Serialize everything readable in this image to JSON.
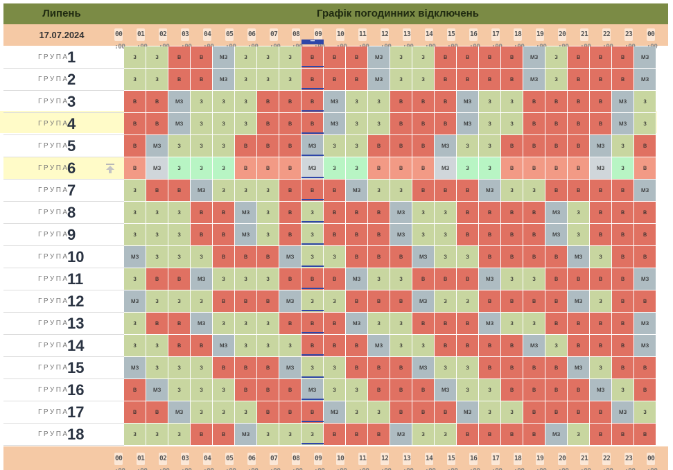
{
  "header": {
    "month": "Липень",
    "title": "Графік погодинних відключень"
  },
  "date": "17.07.2024",
  "hours": [
    "00",
    "01",
    "02",
    "03",
    "04",
    "05",
    "06",
    "07",
    "08",
    "09",
    "10",
    "11",
    "12",
    "13",
    "14",
    "15",
    "16",
    "17",
    "18",
    "19",
    "20",
    "21",
    "22",
    "23",
    "00"
  ],
  "minutes": ":00",
  "group_word": "ГРУПА",
  "highlighted_group": 6,
  "current_hour_indicator": "•••",
  "legend_codes": {
    "з": "з",
    "в": "в",
    "мз": "мз"
  },
  "colors": {
    "z": "#c8d6a0",
    "v": "#e07162",
    "m": "#aebcc2",
    "accent": "#2e46a8",
    "header": "#7b8b45",
    "datebar": "#f5c9a5"
  },
  "groups": [
    {
      "n": "1",
      "cells": [
        "з",
        "з",
        "в",
        "в",
        "мз",
        "з",
        "з",
        "з",
        "в",
        "в",
        "в",
        "мз",
        "з",
        "з",
        "в",
        "в",
        "в",
        "в",
        "мз",
        "з",
        "в",
        "в",
        "в",
        "мз"
      ]
    },
    {
      "n": "2",
      "cells": [
        "з",
        "з",
        "в",
        "в",
        "мз",
        "з",
        "з",
        "з",
        "в",
        "в",
        "в",
        "мз",
        "з",
        "з",
        "в",
        "в",
        "в",
        "в",
        "мз",
        "з",
        "в",
        "в",
        "в",
        "мз"
      ]
    },
    {
      "n": "3",
      "cells": [
        "в",
        "в",
        "мз",
        "з",
        "з",
        "з",
        "в",
        "в",
        "в",
        "мз",
        "з",
        "з",
        "в",
        "в",
        "в",
        "мз",
        "з",
        "з",
        "в",
        "в",
        "в",
        "в",
        "мз",
        "з"
      ]
    },
    {
      "n": "4",
      "cells": [
        "в",
        "в",
        "мз",
        "з",
        "з",
        "з",
        "в",
        "в",
        "в",
        "мз",
        "з",
        "з",
        "в",
        "в",
        "в",
        "мз",
        "з",
        "з",
        "в",
        "в",
        "в",
        "в",
        "мз",
        "з"
      ]
    },
    {
      "n": "5",
      "cells": [
        "в",
        "мз",
        "з",
        "з",
        "з",
        "в",
        "в",
        "в",
        "мз",
        "з",
        "з",
        "в",
        "в",
        "в",
        "мз",
        "з",
        "з",
        "в",
        "в",
        "в",
        "в",
        "мз",
        "з",
        "в"
      ]
    },
    {
      "n": "6",
      "cells": [
        "в",
        "мз",
        "з",
        "з",
        "з",
        "в",
        "в",
        "в",
        "мз",
        "з",
        "з",
        "в",
        "в",
        "в",
        "мз",
        "з",
        "з",
        "в",
        "в",
        "в",
        "в",
        "мз",
        "з",
        "в"
      ]
    },
    {
      "n": "7",
      "cells": [
        "з",
        "в",
        "в",
        "мз",
        "з",
        "з",
        "з",
        "в",
        "в",
        "в",
        "мз",
        "з",
        "з",
        "в",
        "в",
        "в",
        "мз",
        "з",
        "з",
        "в",
        "в",
        "в",
        "в",
        "мз"
      ]
    },
    {
      "n": "8",
      "cells": [
        "з",
        "з",
        "з",
        "в",
        "в",
        "мз",
        "з",
        "в",
        "з",
        "в",
        "в",
        "в",
        "мз",
        "з",
        "з",
        "в",
        "в",
        "в",
        "в",
        "мз",
        "з",
        "в",
        "в",
        "в"
      ]
    },
    {
      "n": "9",
      "cells": [
        "з",
        "з",
        "з",
        "в",
        "в",
        "мз",
        "з",
        "в",
        "з",
        "в",
        "в",
        "в",
        "мз",
        "з",
        "з",
        "в",
        "в",
        "в",
        "в",
        "мз",
        "з",
        "в",
        "в",
        "в"
      ]
    },
    {
      "n": "10",
      "cells": [
        "мз",
        "з",
        "з",
        "з",
        "в",
        "в",
        "в",
        "мз",
        "з",
        "з",
        "в",
        "в",
        "в",
        "мз",
        "з",
        "з",
        "в",
        "в",
        "в",
        "в",
        "мз",
        "з",
        "в",
        "в"
      ]
    },
    {
      "n": "11",
      "cells": [
        "з",
        "в",
        "в",
        "мз",
        "з",
        "з",
        "з",
        "в",
        "в",
        "в",
        "мз",
        "з",
        "з",
        "в",
        "в",
        "в",
        "мз",
        "з",
        "з",
        "в",
        "в",
        "в",
        "в",
        "мз"
      ]
    },
    {
      "n": "12",
      "cells": [
        "мз",
        "з",
        "з",
        "з",
        "в",
        "в",
        "в",
        "мз",
        "з",
        "з",
        "в",
        "в",
        "в",
        "мз",
        "з",
        "з",
        "в",
        "в",
        "в",
        "в",
        "мз",
        "з",
        "в",
        "в"
      ]
    },
    {
      "n": "13",
      "cells": [
        "з",
        "в",
        "в",
        "мз",
        "з",
        "з",
        "з",
        "в",
        "в",
        "в",
        "мз",
        "з",
        "з",
        "в",
        "в",
        "в",
        "мз",
        "з",
        "з",
        "в",
        "в",
        "в",
        "в",
        "мз"
      ]
    },
    {
      "n": "14",
      "cells": [
        "з",
        "з",
        "в",
        "в",
        "мз",
        "з",
        "з",
        "з",
        "в",
        "в",
        "в",
        "мз",
        "з",
        "з",
        "в",
        "в",
        "в",
        "в",
        "мз",
        "з",
        "в",
        "в",
        "в",
        "мз"
      ]
    },
    {
      "n": "15",
      "cells": [
        "мз",
        "з",
        "з",
        "з",
        "в",
        "в",
        "в",
        "мз",
        "з",
        "з",
        "в",
        "в",
        "в",
        "мз",
        "з",
        "з",
        "в",
        "в",
        "в",
        "в",
        "мз",
        "з",
        "в",
        "в"
      ]
    },
    {
      "n": "16",
      "cells": [
        "в",
        "мз",
        "з",
        "з",
        "з",
        "в",
        "в",
        "в",
        "мз",
        "з",
        "з",
        "в",
        "в",
        "в",
        "мз",
        "з",
        "з",
        "в",
        "в",
        "в",
        "в",
        "мз",
        "з",
        "в"
      ]
    },
    {
      "n": "17",
      "cells": [
        "в",
        "в",
        "мз",
        "з",
        "з",
        "з",
        "в",
        "в",
        "в",
        "мз",
        "з",
        "з",
        "в",
        "в",
        "в",
        "мз",
        "з",
        "з",
        "в",
        "в",
        "в",
        "в",
        "мз",
        "з"
      ]
    },
    {
      "n": "18",
      "cells": [
        "з",
        "з",
        "з",
        "в",
        "в",
        "мз",
        "з",
        "з",
        "з",
        "в",
        "в",
        "в",
        "мз",
        "з",
        "з",
        "в",
        "в",
        "в",
        "в",
        "мз",
        "з",
        "в",
        "в",
        "в"
      ]
    }
  ]
}
